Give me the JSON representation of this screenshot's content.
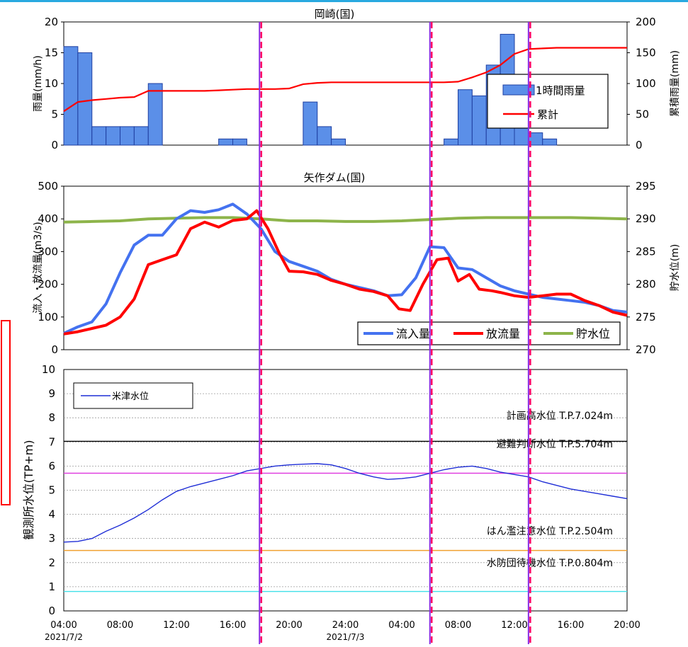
{
  "chart_data": [
    {
      "type": "bar",
      "title": "岡崎(国)",
      "ylabel": "雨量(mm/h)",
      "y2label": "累積雨量(mm)",
      "ylim": [
        0,
        20
      ],
      "y2lim": [
        0,
        200
      ],
      "yticks": [
        "0",
        "5",
        "10",
        "15",
        "20"
      ],
      "y2ticks": [
        "0",
        "50",
        "100",
        "150",
        "200"
      ],
      "legend_position": "right",
      "legend": [
        {
          "label": "1時間雨量",
          "color": "#5B8FE8"
        },
        {
          "label": "累計",
          "color": "#FF0000"
        }
      ],
      "bars_start_hour": 4,
      "hourly_rain": [
        16,
        15,
        3,
        3,
        3,
        3,
        10,
        0,
        0,
        0,
        0,
        1,
        1,
        0,
        0,
        0,
        0,
        7,
        3,
        1,
        0,
        0,
        0,
        0,
        0,
        0,
        0,
        1,
        9,
        8,
        13,
        18,
        7,
        2,
        1,
        0,
        0,
        0,
        0,
        0,
        0
      ],
      "cumulative": {
        "x": [
          4,
          5,
          6,
          7,
          8,
          9,
          10,
          11,
          12,
          13,
          14,
          15,
          16,
          17,
          18,
          19,
          20,
          21,
          22,
          23,
          24,
          25,
          26,
          27,
          28,
          29,
          30,
          31,
          32,
          33,
          34,
          35,
          36,
          37,
          38,
          39,
          40,
          41,
          42,
          43,
          44
        ],
        "y": [
          55,
          70,
          73,
          75,
          77,
          78,
          88,
          88,
          88,
          88,
          88,
          89,
          90,
          91,
          91,
          91,
          92,
          99,
          101,
          102,
          102,
          102,
          102,
          102,
          102,
          102,
          102,
          102,
          103,
          110,
          118,
          130,
          148,
          156,
          157,
          158,
          158,
          158,
          158,
          158,
          158
        ]
      }
    },
    {
      "type": "line",
      "title": "矢作ダム(国)",
      "ylabel": "流入・放流量(m3/s)",
      "y2label": "貯水位(m)",
      "ylim": [
        0,
        500
      ],
      "y2lim": [
        270,
        295
      ],
      "yticks": [
        "0",
        "100",
        "200",
        "300",
        "400",
        "500"
      ],
      "y2ticks": [
        "270",
        "275",
        "280",
        "285",
        "290",
        "295"
      ],
      "legend_position": "bottom-right",
      "series": [
        {
          "name": "流入量",
          "color": "#4472F0",
          "axis": "left",
          "x": [
            4,
            5,
            6,
            7,
            8,
            9,
            10,
            11,
            12,
            13,
            14,
            15,
            16,
            17,
            18,
            19,
            20,
            21,
            22,
            23,
            24,
            25,
            26,
            27,
            28,
            29,
            30,
            31,
            32,
            33,
            34,
            35,
            36,
            37,
            38,
            39,
            40,
            41,
            42,
            43,
            44
          ],
          "y": [
            50,
            70,
            85,
            140,
            235,
            320,
            350,
            350,
            400,
            425,
            420,
            428,
            445,
            415,
            370,
            300,
            270,
            255,
            240,
            215,
            200,
            190,
            180,
            165,
            168,
            220,
            315,
            312,
            250,
            245,
            220,
            195,
            180,
            170,
            160,
            155,
            150,
            145,
            135,
            120,
            115
          ]
        },
        {
          "name": "放流量",
          "color": "#FF0000",
          "axis": "left",
          "x": [
            4,
            5,
            6,
            7,
            8,
            9,
            10,
            11,
            12,
            13,
            14,
            15,
            16,
            17,
            17.7,
            18.5,
            19.3,
            20,
            21,
            22,
            23,
            24,
            25,
            26,
            27,
            27.8,
            28.6,
            29.5,
            30.5,
            31.3,
            32,
            32.8,
            33.5,
            34.4,
            35,
            36,
            37,
            38,
            39,
            40,
            41,
            42,
            43,
            44
          ],
          "y": [
            48,
            55,
            65,
            75,
            100,
            155,
            260,
            275,
            290,
            370,
            390,
            375,
            395,
            400,
            425,
            370,
            295,
            240,
            238,
            230,
            212,
            200,
            185,
            178,
            165,
            125,
            120,
            200,
            275,
            280,
            210,
            230,
            185,
            180,
            175,
            165,
            160,
            165,
            170,
            170,
            150,
            135,
            115,
            105
          ]
        },
        {
          "name": "貯水位",
          "color": "#8DB44A",
          "axis": "right",
          "x": [
            4,
            6,
            8,
            10,
            12,
            14,
            16,
            18,
            20,
            22,
            24,
            26,
            28,
            30,
            32,
            34,
            36,
            38,
            40,
            42,
            44
          ],
          "y": [
            289.5,
            289.6,
            289.7,
            290,
            290.1,
            290.2,
            290.2,
            290.0,
            289.7,
            289.7,
            289.6,
            289.6,
            289.7,
            289.9,
            290.1,
            290.2,
            290.2,
            290.2,
            290.2,
            290.1,
            290.0
          ]
        }
      ]
    },
    {
      "type": "line",
      "ylabel": "観測所水位(TP+m)",
      "ylim": [
        0,
        10
      ],
      "yticks": [
        "0",
        "1",
        "2",
        "3",
        "4",
        "5",
        "6",
        "7",
        "8",
        "9",
        "10"
      ],
      "xlim": [
        4,
        44
      ],
      "xticks": [
        {
          "x": 4,
          "label": "04:00",
          "sub": "2021/7/2"
        },
        {
          "x": 8,
          "label": "08:00"
        },
        {
          "x": 12,
          "label": "12:00"
        },
        {
          "x": 16,
          "label": "16:00"
        },
        {
          "x": 20,
          "label": "20:00"
        },
        {
          "x": 24,
          "label": "24:00",
          "sub": "2021/7/3"
        },
        {
          "x": 28,
          "label": "04:00"
        },
        {
          "x": 32,
          "label": "08:00"
        },
        {
          "x": 36,
          "label": "12:00"
        },
        {
          "x": 40,
          "label": "16:00"
        },
        {
          "x": 44,
          "label": "20:00"
        }
      ],
      "legend_position": "top-left",
      "series": [
        {
          "name": "米津水位",
          "color": "#1F2ED6",
          "x": [
            4,
            5,
            6,
            7,
            8,
            9,
            10,
            11,
            12,
            13,
            14,
            15,
            16,
            17,
            18,
            19,
            20,
            21,
            22,
            23,
            24,
            25,
            26,
            27,
            28,
            29,
            30,
            31,
            32,
            33,
            34,
            35,
            36,
            37,
            38,
            39,
            40,
            41,
            42,
            43,
            44
          ],
          "y": [
            2.85,
            2.88,
            3.0,
            3.3,
            3.55,
            3.85,
            4.2,
            4.6,
            4.95,
            5.15,
            5.3,
            5.45,
            5.6,
            5.8,
            5.9,
            6.0,
            6.05,
            6.08,
            6.1,
            6.05,
            5.9,
            5.7,
            5.55,
            5.45,
            5.48,
            5.55,
            5.7,
            5.85,
            5.95,
            6.0,
            5.9,
            5.75,
            5.65,
            5.55,
            5.35,
            5.2,
            5.05,
            4.95,
            4.85,
            4.75,
            4.65
          ]
        }
      ],
      "reference_lines": [
        {
          "label": "計画高水位 T.P.7.024m",
          "value": 7.024,
          "color": "#000000"
        },
        {
          "label": "避難判断水位 T.P.5.704m",
          "value": 5.704,
          "color": "#E040E0"
        },
        {
          "label": "はん濫注意水位 T.P.2.504m",
          "value": 2.504,
          "color": "#F0A030"
        },
        {
          "label": "水防団待機水位 T.P.0.804m",
          "value": 0.804,
          "color": "#40E0E8"
        }
      ]
    }
  ],
  "markers": {
    "x": [
      17.9,
      30.0,
      37.0
    ],
    "line_color": "#8A2BE2",
    "dash_color": "#FF0066"
  },
  "colors": {
    "top_border": "#29A9E0",
    "callout_border": "#FF0000"
  }
}
